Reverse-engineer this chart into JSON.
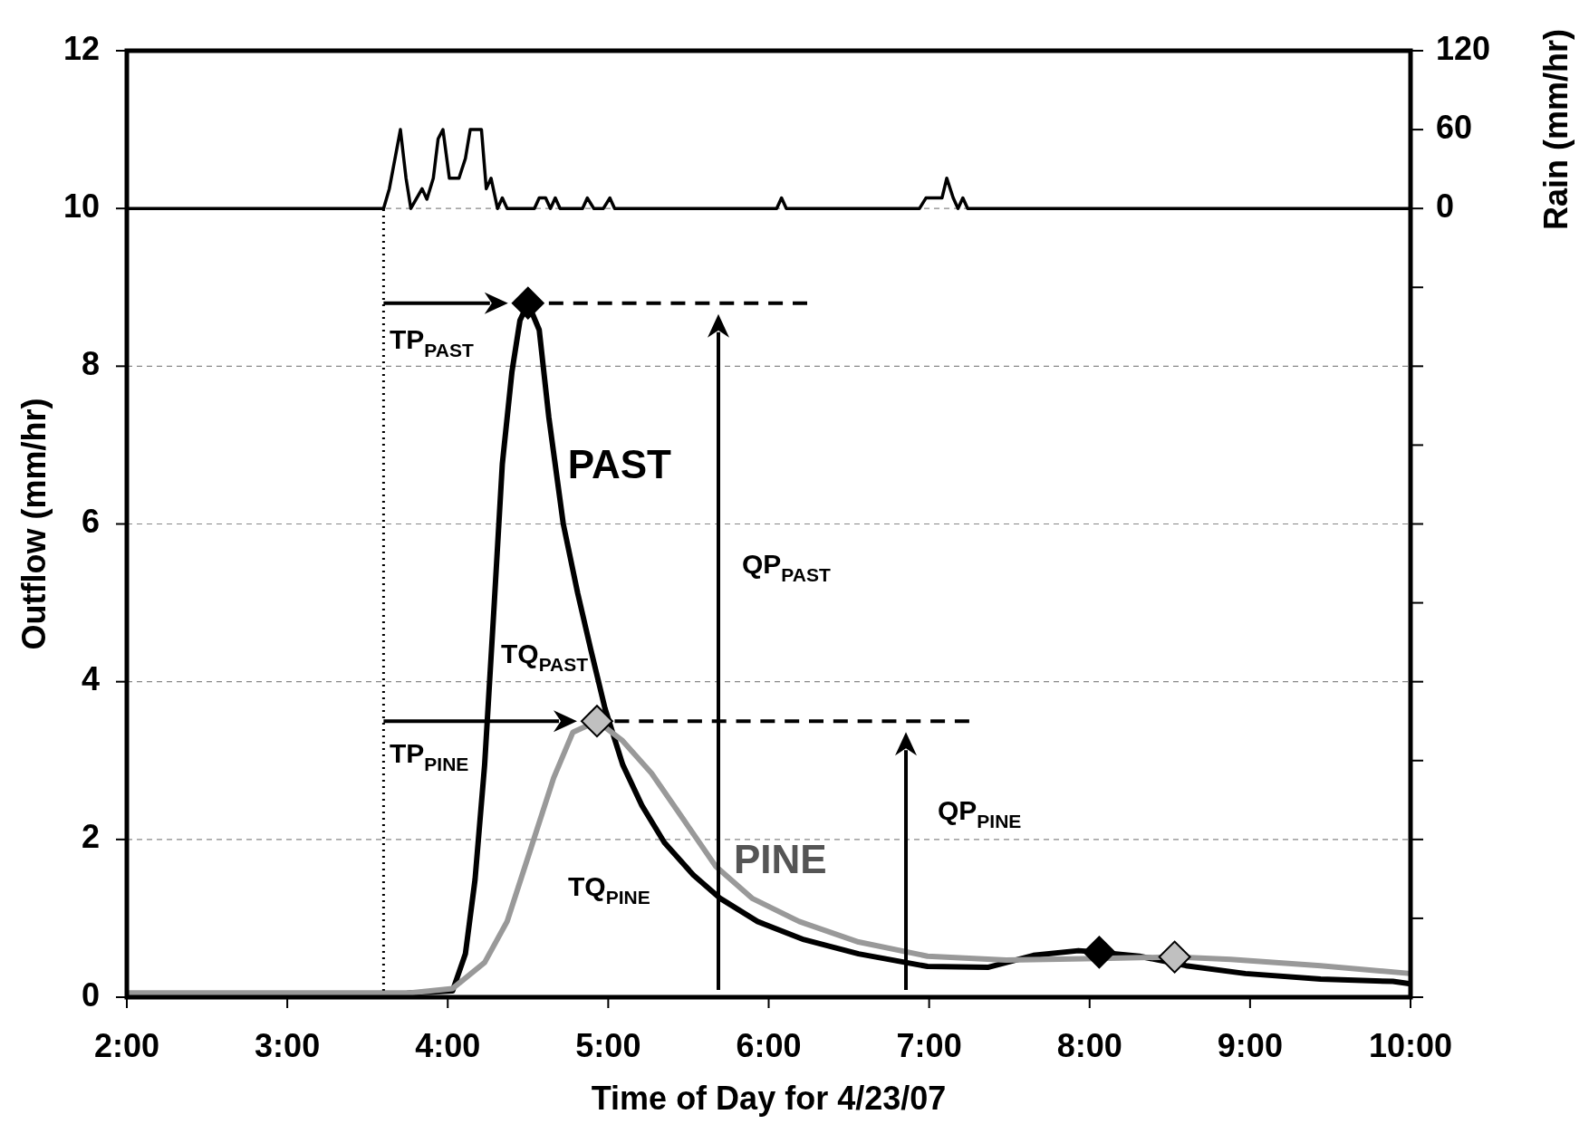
{
  "chart_data": {
    "type": "line",
    "xlabel": "Time of Day for 4/23/07",
    "ylabel": "Outflow (mm/hr)",
    "y2label": "Rain (mm/hr)",
    "xlim": [
      2,
      10
    ],
    "xticks": [
      {
        "value": 2,
        "label": "2:00"
      },
      {
        "value": 3,
        "label": "3:00"
      },
      {
        "value": 4,
        "label": "4:00"
      },
      {
        "value": 5,
        "label": "5:00"
      },
      {
        "value": 6,
        "label": "6:00"
      },
      {
        "value": 7,
        "label": "7:00"
      },
      {
        "value": 8,
        "label": "8:00"
      },
      {
        "value": 9,
        "label": "9:00"
      },
      {
        "value": 10,
        "label": "10:00"
      }
    ],
    "ylim": [
      0,
      12
    ],
    "yticks": [
      0,
      2,
      4,
      6,
      8,
      10,
      12
    ],
    "y2lim": [
      -600,
      120
    ],
    "y2ticks": [
      {
        "value": -600,
        "label": null
      },
      {
        "value": -540,
        "label": null
      },
      {
        "value": -480,
        "label": null
      },
      {
        "value": -420,
        "label": null
      },
      {
        "value": -360,
        "label": null
      },
      {
        "value": -300,
        "label": null
      },
      {
        "value": -240,
        "label": null
      },
      {
        "value": -180,
        "label": null
      },
      {
        "value": -120,
        "label": null
      },
      {
        "value": -60,
        "label": null
      },
      0,
      60,
      120
    ],
    "grid": "y",
    "series": [
      {
        "name": "PAST",
        "color": "#000000",
        "x": [
          2,
          3,
          3.74,
          4.03,
          4.11,
          4.17,
          4.23,
          4.29,
          4.34,
          4.4,
          4.45,
          4.5,
          4.57,
          4.63,
          4.72,
          4.81,
          4.89,
          4.98,
          5.09,
          5.21,
          5.35,
          5.53,
          5.7,
          5.93,
          6.22,
          6.56,
          6.99,
          7.37,
          7.65,
          7.93,
          8.06,
          8.31,
          8.6,
          8.97,
          9.44,
          9.89,
          10
        ],
        "values": [
          0.05,
          0.05,
          0.05,
          0.08,
          0.55,
          1.49,
          2.95,
          5.0,
          6.76,
          7.93,
          8.58,
          8.8,
          8.46,
          7.35,
          6.0,
          5.12,
          4.42,
          3.66,
          2.95,
          2.43,
          1.96,
          1.55,
          1.25,
          0.96,
          0.73,
          0.55,
          0.39,
          0.38,
          0.53,
          0.59,
          0.57,
          0.52,
          0.4,
          0.3,
          0.23,
          0.2,
          0.17
        ]
      },
      {
        "name": "PINE",
        "color": "#999999",
        "x": [
          2,
          3,
          3.74,
          4.03,
          4.23,
          4.37,
          4.52,
          4.66,
          4.78,
          4.93,
          5.09,
          5.27,
          5.47,
          5.67,
          5.9,
          6.19,
          6.56,
          6.99,
          7.48,
          8.06,
          8.53,
          8.88,
          9.44,
          10
        ],
        "values": [
          0.05,
          0.05,
          0.05,
          0.11,
          0.44,
          0.96,
          1.9,
          2.78,
          3.36,
          3.5,
          3.25,
          2.84,
          2.25,
          1.66,
          1.25,
          0.96,
          0.7,
          0.52,
          0.47,
          0.49,
          0.51,
          0.48,
          0.4,
          0.3
        ]
      },
      {
        "type": "scatter",
        "marker": "diamond",
        "color": "#000000",
        "x": [
          4.5,
          8.06
        ],
        "values": [
          8.8,
          0.57
        ]
      },
      {
        "type": "scatter",
        "marker": "diamond",
        "color": "#c0c0c0",
        "x": [
          4.93,
          8.53
        ],
        "values": [
          3.5,
          0.51
        ]
      },
      {
        "type": "line",
        "line_style": "dashed",
        "color": "#000000",
        "x": [
          4.63,
          6.24
        ],
        "values": [
          8.8,
          8.8
        ]
      },
      {
        "type": "line",
        "line_style": "dashed",
        "color": "#000000",
        "x": [
          5.04,
          7.25
        ],
        "values": [
          3.5,
          3.5
        ]
      },
      {
        "type": "line",
        "axis": "y2",
        "color": "#000000",
        "x": [
          2,
          3.6,
          3.636,
          3.705,
          3.74,
          3.77,
          3.84,
          3.87,
          3.91,
          3.94,
          3.97,
          4.01,
          4.07,
          4.11,
          4.14,
          4.21,
          4.24,
          4.27,
          4.31,
          4.34,
          4.37,
          4.54,
          4.57,
          4.61,
          4.64,
          4.67,
          4.7,
          4.84,
          4.87,
          4.91,
          4.97,
          5.01,
          5.04,
          6.05,
          6.08,
          6.11,
          6.94,
          6.98,
          7.08,
          7.11,
          7.15,
          7.18,
          7.21,
          7.24,
          10
        ],
        "values": [
          0,
          0,
          15,
          60,
          23,
          0,
          15,
          7,
          23,
          53,
          60,
          23,
          23,
          38,
          60,
          60,
          15,
          23,
          0,
          8,
          0,
          0,
          8,
          8,
          0,
          8,
          0,
          0,
          8,
          0,
          0,
          8,
          0,
          0,
          8,
          0,
          0,
          8,
          8,
          23,
          8,
          0,
          8,
          0,
          0
        ]
      }
    ],
    "ref_lines": [
      {
        "axis": "x",
        "value": 3.6,
        "line_style": "dotted",
        "color": "#000000"
      }
    ],
    "annotations": [
      "TP$_{PAST}$",
      "TP$_{PINE}$",
      "TQ$_{PAST}$",
      "TQ$_{PINE}$",
      "QP$_{PAST}$",
      "QP$_{PINE}$"
    ]
  }
}
